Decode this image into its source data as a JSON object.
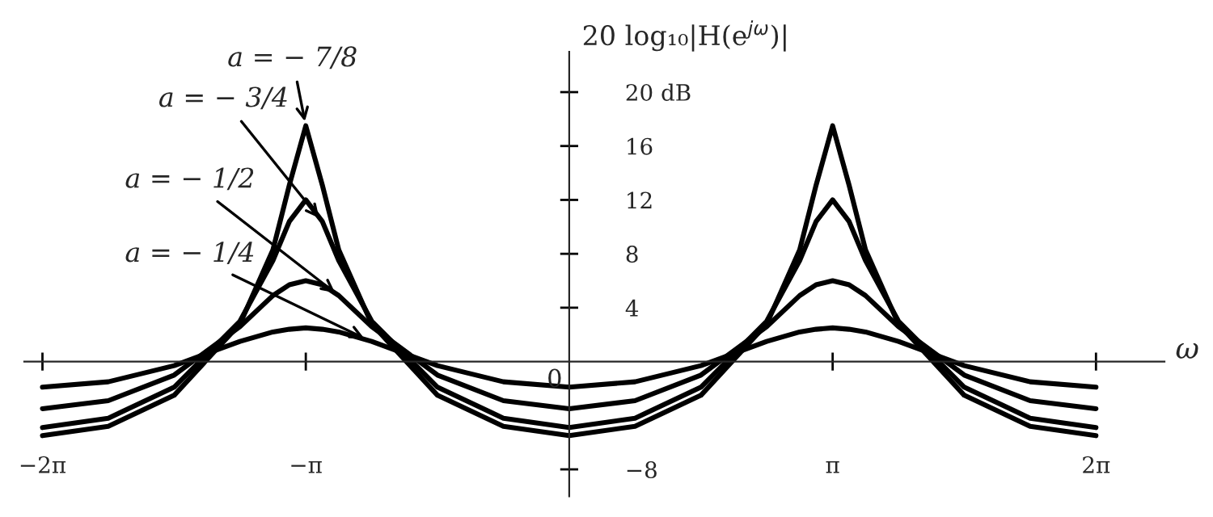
{
  "chart_data": {
    "type": "line",
    "ylabel": "20 log₁₀|H(e$^{jω}$)|",
    "xlabel": "ω",
    "x": [
      -6.283,
      -5.498,
      -4.712,
      -3.927,
      -3.534,
      -3.338,
      -3.142,
      -2.945,
      -2.749,
      -2.356,
      -1.571,
      -0.785,
      0,
      0.785,
      1.571,
      2.356,
      2.749,
      2.945,
      3.142,
      3.338,
      3.534,
      3.927,
      4.712,
      5.498,
      6.283
    ],
    "series": [
      {
        "color": "#000000",
        "values": [
          -1.9,
          -1.5,
          -0.3,
          1.5,
          2.2,
          2.4,
          2.5,
          2.4,
          2.2,
          1.5,
          -0.3,
          -1.5,
          -1.9,
          -1.5,
          -0.3,
          1.5,
          2.2,
          2.4,
          2.5,
          2.4,
          2.2,
          1.5,
          -0.3,
          -1.5,
          -1.9
        ]
      },
      {
        "color": "#000000",
        "values": [
          -3.5,
          -2.9,
          -1.0,
          2.6,
          4.9,
          5.7,
          6.0,
          5.7,
          4.9,
          2.6,
          -1.0,
          -2.9,
          -3.5,
          -2.9,
          -1.0,
          2.6,
          4.9,
          5.7,
          6.0,
          5.7,
          4.9,
          2.6,
          -1.0,
          -2.9,
          -3.5
        ]
      },
      {
        "color": "#000000",
        "values": [
          -4.9,
          -4.2,
          -1.9,
          3.0,
          7.5,
          10.4,
          12.0,
          10.4,
          7.5,
          3.0,
          -1.9,
          -4.2,
          -4.9,
          -4.2,
          -1.9,
          3.0,
          7.5,
          10.4,
          12.0,
          10.4,
          7.5,
          3.0,
          -1.9,
          -4.2,
          -4.9
        ]
      },
      {
        "color": "#000000",
        "values": [
          -5.5,
          -4.8,
          -2.5,
          2.8,
          8.3,
          13.1,
          17.5,
          13.1,
          8.3,
          2.8,
          -2.5,
          -4.8,
          -5.5,
          -4.8,
          -2.5,
          2.8,
          8.3,
          13.1,
          17.5,
          13.1,
          8.3,
          2.8,
          -2.5,
          -4.8,
          -5.5
        ]
      }
    ],
    "xlim": [
      -6.5,
      7.1
    ],
    "ylim": [
      -10,
      23
    ],
    "xticks": [
      {
        "value": -6.283,
        "label": "−2π"
      },
      {
        "value": -3.142,
        "label": "−π"
      },
      {
        "value": 3.142,
        "label": "π"
      },
      {
        "value": 6.283,
        "label": "2π"
      }
    ],
    "yticks": [
      {
        "value": -8,
        "label": "−8"
      },
      4,
      8,
      12,
      16,
      {
        "value": 20,
        "label": "20 dB"
      }
    ],
    "annotations": [
      {
        "text": "a = − 7/8",
        "x": -3.142,
        "y": 17.5
      },
      {
        "text": "a = − 3/4",
        "x": -2.95,
        "y": 10.4
      },
      {
        "text": "a = − 1/2",
        "x": -2.75,
        "y": 4.9
      },
      {
        "text": "a = − 1/4",
        "x": -2.4,
        "y": 1.6
      },
      "0"
    ],
    "grid": false,
    "legend": false,
    "marker": "none",
    "line_style": "solid"
  }
}
